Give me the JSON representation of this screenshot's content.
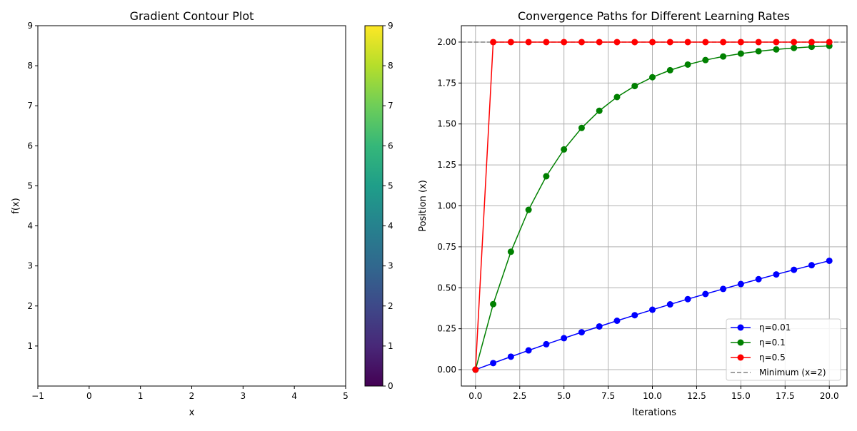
{
  "chart_data": [
    {
      "type": "heatmap",
      "title": "Gradient Contour Plot",
      "xlabel": "x",
      "ylabel": "f(x)",
      "xlim": [
        -1,
        5
      ],
      "ylim": [
        0,
        9
      ],
      "x_ticks": [
        "−1",
        "0",
        "1",
        "2",
        "3",
        "4",
        "5"
      ],
      "y_ticks": [
        "1",
        "2",
        "3",
        "4",
        "5",
        "6",
        "7",
        "8",
        "9"
      ],
      "colorbar": {
        "colormap": "viridis",
        "range": [
          0,
          9
        ],
        "ticks": [
          "0",
          "1",
          "2",
          "3",
          "4",
          "5",
          "6",
          "7",
          "8",
          "9"
        ],
        "stops": [
          "#440154",
          "#482878",
          "#3e4989",
          "#31688e",
          "#26828e",
          "#1f9e89",
          "#35b779",
          "#6ece58",
          "#b5de2b",
          "#fde725"
        ]
      },
      "grid": false
    },
    {
      "type": "line",
      "title": "Convergence Paths for Different Learning Rates",
      "xlabel": "Iterations",
      "ylabel": "Position (x)",
      "xlim": [
        -0.8,
        21
      ],
      "ylim": [
        -0.1,
        2.1
      ],
      "x_ticks": [
        "0.0",
        "2.5",
        "5.0",
        "7.5",
        "10.0",
        "12.5",
        "15.0",
        "17.5",
        "20.0"
      ],
      "y_ticks": [
        "0.00",
        "0.25",
        "0.50",
        "0.75",
        "1.00",
        "1.25",
        "1.50",
        "1.75",
        "2.00"
      ],
      "grid": true,
      "legend_position": "lower-right",
      "x": [
        0,
        1,
        2,
        3,
        4,
        5,
        6,
        7,
        8,
        9,
        10,
        11,
        12,
        13,
        14,
        15,
        16,
        17,
        18,
        19,
        20
      ],
      "series": [
        {
          "name": "η=0.01",
          "color": "#0000ff",
          "values": [
            0,
            0.04,
            0.0792,
            0.1176,
            0.1553,
            0.1922,
            0.2284,
            0.2638,
            0.2986,
            0.3326,
            0.3659,
            0.3986,
            0.4306,
            0.462,
            0.4928,
            0.5229,
            0.5524,
            0.5814,
            0.6098,
            0.6376,
            0.6648
          ]
        },
        {
          "name": "η=0.1",
          "color": "#008000",
          "values": [
            0,
            0.4,
            0.72,
            0.976,
            1.1808,
            1.3446,
            1.4757,
            1.5806,
            1.6645,
            1.7316,
            1.7853,
            1.8282,
            1.8626,
            1.8901,
            1.9121,
            1.9296,
            1.9437,
            1.955,
            1.964,
            1.9712,
            1.9769
          ]
        },
        {
          "name": "η=0.5",
          "color": "#ff0000",
          "values": [
            0,
            2,
            2,
            2,
            2,
            2,
            2,
            2,
            2,
            2,
            2,
            2,
            2,
            2,
            2,
            2,
            2,
            2,
            2,
            2,
            2
          ]
        }
      ],
      "reference_line": {
        "name": "Minimum (x=2)",
        "y": 2,
        "color": "#808080",
        "style": "dashed"
      }
    }
  ]
}
